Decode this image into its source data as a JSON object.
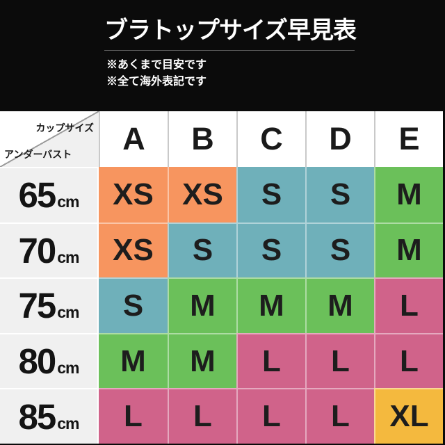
{
  "header": {
    "title": "ブラトップサイズ早見表",
    "notes": [
      "※あくまで目安です",
      "※全て海外表記です"
    ]
  },
  "table": {
    "corner": {
      "cup_axis_label": "カップサイズ",
      "underbust_axis_label": "アンダーバスト"
    },
    "cup_sizes": [
      "A",
      "B",
      "C",
      "D",
      "E"
    ],
    "unit": "cm",
    "rows": [
      {
        "underbust": "65",
        "sizes": [
          "XS",
          "XS",
          "S",
          "S",
          "M"
        ],
        "colors": [
          "orange",
          "orange",
          "teal",
          "teal",
          "green"
        ]
      },
      {
        "underbust": "70",
        "sizes": [
          "XS",
          "S",
          "S",
          "S",
          "M"
        ],
        "colors": [
          "orange",
          "teal",
          "teal",
          "teal",
          "green"
        ]
      },
      {
        "underbust": "75",
        "sizes": [
          "S",
          "M",
          "M",
          "M",
          "L"
        ],
        "colors": [
          "teal",
          "green",
          "green",
          "green",
          "pink"
        ]
      },
      {
        "underbust": "80",
        "sizes": [
          "M",
          "M",
          "L",
          "L",
          "L"
        ],
        "colors": [
          "green",
          "green",
          "pink",
          "pink",
          "pink"
        ]
      },
      {
        "underbust": "85",
        "sizes": [
          "L",
          "L",
          "L",
          "L",
          "XL"
        ],
        "colors": [
          "pink",
          "pink",
          "pink",
          "pink",
          "yellow"
        ]
      }
    ]
  },
  "palette": {
    "orange": "#f7955f",
    "teal": "#6fb0ba",
    "green": "#6bc05a",
    "pink": "#d0638a",
    "yellow": "#f4b93e",
    "row_label_bg": "#f0f0f0",
    "background": "#0b0b0b",
    "text": "#1a1a1a"
  }
}
